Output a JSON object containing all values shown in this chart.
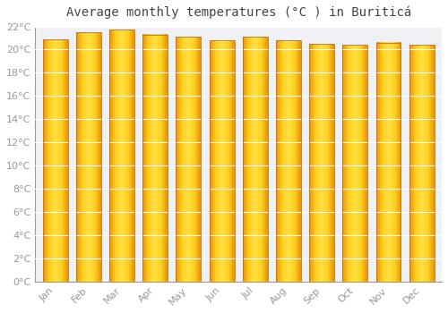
{
  "title": "Average monthly temperatures (°C ) in Buriticá",
  "months": [
    "Jan",
    "Feb",
    "Mar",
    "Apr",
    "May",
    "Jun",
    "Jul",
    "Aug",
    "Sep",
    "Oct",
    "Nov",
    "Dec"
  ],
  "values": [
    20.9,
    21.5,
    21.7,
    21.3,
    21.1,
    20.8,
    21.1,
    20.8,
    20.5,
    20.4,
    20.6,
    20.4
  ],
  "bar_color_center": "#FFD000",
  "bar_color_edge": "#E8920A",
  "background_color": "#ffffff",
  "plot_bg_color": "#f0f0f5",
  "grid_color": "#ffffff",
  "ylim": [
    0,
    22
  ],
  "yticks": [
    0,
    2,
    4,
    6,
    8,
    10,
    12,
    14,
    16,
    18,
    20,
    22
  ],
  "title_fontsize": 10,
  "tick_fontsize": 8,
  "tick_color": "#999999",
  "bar_width": 0.75
}
